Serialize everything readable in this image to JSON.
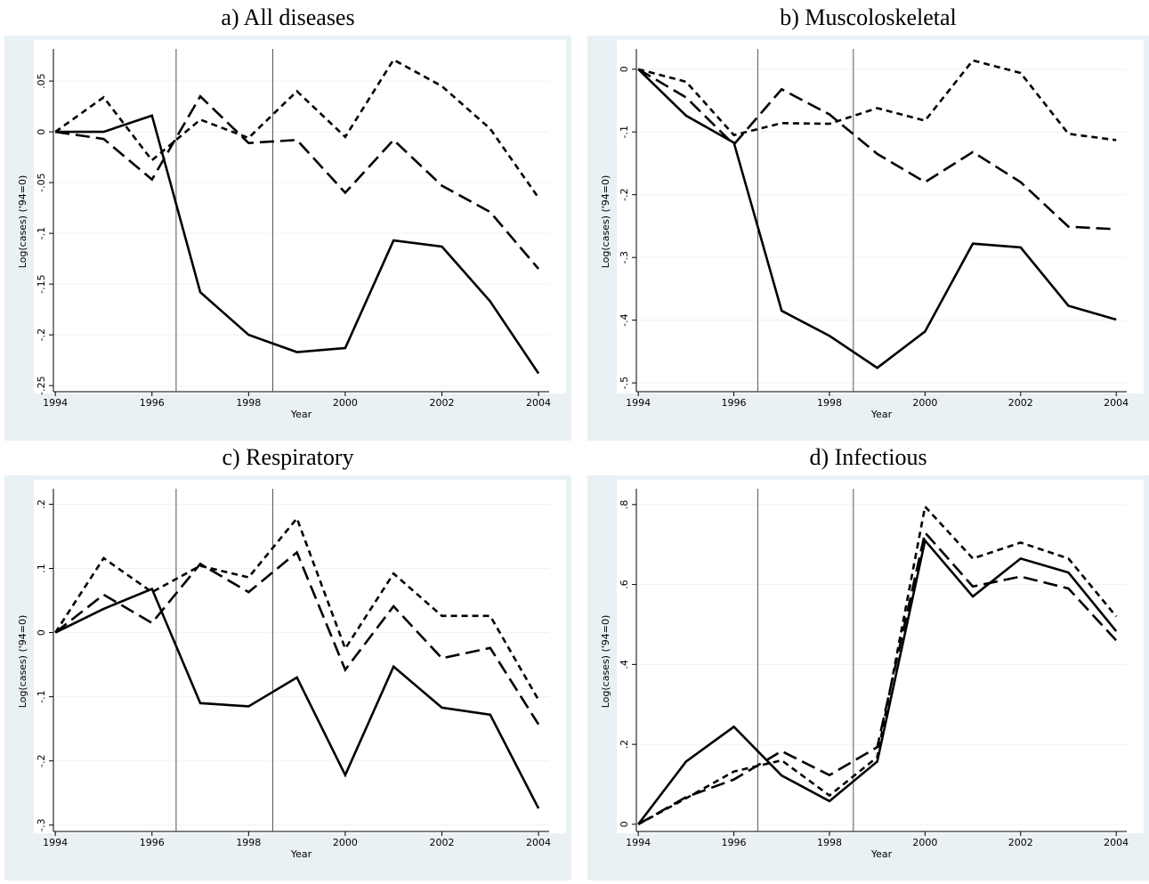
{
  "chart_data": [
    {
      "type": "line",
      "title": "a) All diseases",
      "xlabel": "Year",
      "ylabel": "Log(cases) ('94=0)",
      "x": [
        1994,
        1995,
        1996,
        1997,
        1998,
        1999,
        2000,
        2001,
        2002,
        2003,
        2004
      ],
      "xlim": [
        1993.96,
        2004.22
      ],
      "xticks": [
        1994,
        1996,
        1998,
        2000,
        2002,
        2004
      ],
      "ylim": [
        -0.256,
        0.079
      ],
      "yticks": [
        {
          "value": 0.05,
          "label": ".05"
        },
        0,
        {
          "value": -0.05,
          "label": "-.05"
        },
        {
          "value": -0.1,
          "label": "-.1"
        },
        {
          "value": -0.15,
          "label": "-.15"
        },
        {
          "value": -0.2,
          "label": "-.2"
        },
        {
          "value": -0.25,
          "label": "-.25"
        }
      ],
      "grid": true,
      "vlines": [
        1996.5,
        1998.5
      ],
      "series": [
        {
          "color": "#000000",
          "dash": "solid",
          "values": [
            0,
            0,
            0.016,
            -0.158,
            -0.2,
            -0.217,
            -0.213,
            -0.107,
            -0.113,
            -0.167,
            -0.238
          ]
        },
        {
          "color": "#000000",
          "dash": "long",
          "values": [
            0,
            -0.007,
            -0.047,
            0.035,
            -0.011,
            -0.008,
            -0.06,
            -0.008,
            -0.053,
            -0.079,
            -0.135
          ]
        },
        {
          "color": "#000000",
          "dash": "short",
          "values": [
            0,
            0.034,
            -0.028,
            0.012,
            -0.006,
            0.04,
            -0.005,
            0.071,
            0.045,
            0.003,
            -0.065
          ]
        }
      ]
    },
    {
      "type": "line",
      "title": "b) Muscoloskeletal",
      "xlabel": "Year",
      "ylabel": "Log(cases) ('94=0)",
      "x": [
        1994,
        1995,
        1996,
        1997,
        1998,
        1999,
        2000,
        2001,
        2002,
        2003,
        2004
      ],
      "xlim": [
        1993.96,
        2004.22
      ],
      "xticks": [
        1994,
        1996,
        1998,
        2000,
        2002,
        2004
      ],
      "ylim": [
        -0.514,
        0.028
      ],
      "yticks": [
        0,
        {
          "value": -0.1,
          "label": "-.1"
        },
        {
          "value": -0.2,
          "label": "-.2"
        },
        {
          "value": -0.3,
          "label": "-.3"
        },
        {
          "value": -0.4,
          "label": "-.4"
        },
        {
          "value": -0.5,
          "label": "-.5"
        }
      ],
      "grid": true,
      "vlines": [
        1996.5,
        1998.5
      ],
      "series": [
        {
          "color": "#000000",
          "dash": "solid",
          "values": [
            0,
            -0.074,
            -0.117,
            -0.385,
            -0.425,
            -0.476,
            -0.418,
            -0.278,
            -0.284,
            -0.377,
            -0.399
          ]
        },
        {
          "color": "#000000",
          "dash": "long",
          "values": [
            0,
            -0.045,
            -0.12,
            -0.032,
            -0.072,
            -0.135,
            -0.18,
            -0.132,
            -0.18,
            -0.251,
            -0.255
          ]
        },
        {
          "color": "#000000",
          "dash": "short",
          "values": [
            0,
            -0.02,
            -0.105,
            -0.086,
            -0.087,
            -0.062,
            -0.082,
            0.014,
            -0.006,
            -0.103,
            -0.113
          ]
        }
      ]
    },
    {
      "type": "line",
      "title": "c) Respiratory",
      "xlabel": "Year",
      "ylabel": "Log(cases) ('94=0)",
      "x": [
        1994,
        1995,
        1996,
        1997,
        1998,
        1999,
        2000,
        2001,
        2002,
        2003,
        2004
      ],
      "xlim": [
        1993.96,
        2004.22
      ],
      "xticks": [
        1994,
        1996,
        1998,
        2000,
        2002,
        2004
      ],
      "ylim": [
        -0.31,
        0.22
      ],
      "yticks": [
        {
          "value": 0.2,
          "label": ".2"
        },
        {
          "value": 0.1,
          "label": ".1"
        },
        0,
        {
          "value": -0.1,
          "label": "-.1"
        },
        {
          "value": -0.2,
          "label": "-.2"
        },
        {
          "value": -0.3,
          "label": "-.3"
        }
      ],
      "grid": true,
      "vlines": [
        1996.5,
        1998.5
      ],
      "series": [
        {
          "color": "#000000",
          "dash": "solid",
          "values": [
            0,
            0.037,
            0.068,
            -0.11,
            -0.115,
            -0.07,
            -0.222,
            -0.053,
            -0.117,
            -0.128,
            -0.274
          ]
        },
        {
          "color": "#000000",
          "dash": "long",
          "values": [
            0,
            0.059,
            0.015,
            0.107,
            0.063,
            0.125,
            -0.058,
            0.041,
            -0.04,
            -0.024,
            -0.143
          ]
        },
        {
          "color": "#000000",
          "dash": "short",
          "values": [
            0,
            0.116,
            0.063,
            0.104,
            0.086,
            0.178,
            -0.025,
            0.092,
            0.026,
            0.026,
            -0.105
          ]
        }
      ]
    },
    {
      "type": "line",
      "title": "d) Infectious",
      "xlabel": "Year",
      "ylabel": "Log(cases) ('94=0)",
      "x": [
        1994,
        1995,
        1996,
        1997,
        1998,
        1999,
        2000,
        2001,
        2002,
        2003,
        2004
      ],
      "xlim": [
        1993.96,
        2004.22
      ],
      "xticks": [
        1994,
        1996,
        1998,
        2000,
        2002,
        2004
      ],
      "ylim": [
        -0.018,
        0.833
      ],
      "yticks": [
        0,
        {
          "value": 0.2,
          "label": ".2"
        },
        {
          "value": 0.4,
          "label": ".4"
        },
        {
          "value": 0.6,
          "label": ".6"
        },
        {
          "value": 0.8,
          "label": ".8"
        }
      ],
      "grid": true,
      "vlines": [
        1996.5,
        1998.5
      ],
      "series": [
        {
          "color": "#000000",
          "dash": "solid",
          "values": [
            0,
            0.157,
            0.244,
            0.122,
            0.058,
            0.157,
            0.71,
            0.57,
            0.665,
            0.63,
            0.483
          ]
        },
        {
          "color": "#000000",
          "dash": "long",
          "values": [
            0,
            0.068,
            0.112,
            0.183,
            0.123,
            0.193,
            0.73,
            0.595,
            0.62,
            0.59,
            0.46
          ]
        },
        {
          "color": "#000000",
          "dash": "short",
          "values": [
            0,
            0.065,
            0.132,
            0.16,
            0.072,
            0.168,
            0.795,
            0.665,
            0.705,
            0.665,
            0.52
          ]
        }
      ]
    }
  ]
}
